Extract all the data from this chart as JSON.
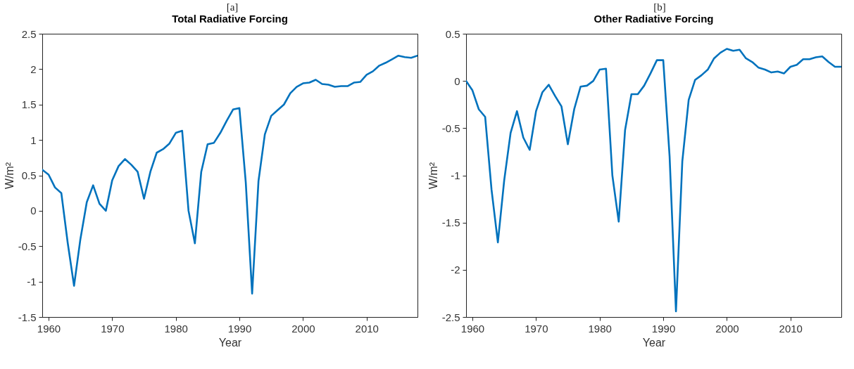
{
  "chart_data": [
    {
      "type": "line",
      "title": "Total Radiative Forcing",
      "xlabel": "Year",
      "ylabel": "W/m²",
      "annotations": [
        "[a]"
      ],
      "x": [
        1959,
        1960,
        1961,
        1962,
        1963,
        1964,
        1965,
        1966,
        1967,
        1968,
        1969,
        1970,
        1971,
        1972,
        1973,
        1974,
        1975,
        1976,
        1977,
        1978,
        1979,
        1980,
        1981,
        1982,
        1983,
        1984,
        1985,
        1986,
        1987,
        1988,
        1989,
        1990,
        1991,
        1992,
        1993,
        1994,
        1995,
        1996,
        1997,
        1998,
        1999,
        2000,
        2001,
        2002,
        2003,
        2004,
        2005,
        2006,
        2007,
        2008,
        2009,
        2010,
        2011,
        2012,
        2013,
        2014,
        2015,
        2016,
        2017,
        2018
      ],
      "series": [
        {
          "color": "#0072bd",
          "values": [
            0.58,
            0.51,
            0.33,
            0.25,
            -0.45,
            -1.06,
            -0.4,
            0.12,
            0.36,
            0.1,
            0.0,
            0.43,
            0.63,
            0.73,
            0.65,
            0.55,
            0.17,
            0.55,
            0.82,
            0.87,
            0.95,
            1.1,
            1.13,
            0.0,
            -0.46,
            0.55,
            0.94,
            0.96,
            1.1,
            1.27,
            1.43,
            1.45,
            0.4,
            -1.17,
            0.42,
            1.08,
            1.34,
            1.42,
            1.5,
            1.66,
            1.75,
            1.8,
            1.81,
            1.85,
            1.79,
            1.78,
            1.75,
            1.76,
            1.76,
            1.81,
            1.82,
            1.92,
            1.97,
            2.05,
            2.09,
            2.14,
            2.19,
            2.17,
            2.16,
            2.19
          ]
        }
      ],
      "xlim": [
        1959,
        2018
      ],
      "xticks": [
        1960,
        1970,
        1980,
        1990,
        2000,
        2010
      ],
      "ylim": [
        -1.5,
        2.5
      ],
      "yticks": [
        -1.5,
        -1,
        -0.5,
        0,
        0.5,
        1,
        1.5,
        2,
        2.5
      ],
      "grid": false,
      "line_style": "solid"
    },
    {
      "type": "line",
      "title": "Other Radiative Forcing",
      "xlabel": "Year",
      "ylabel": "W/m²",
      "annotations": [
        "[b]"
      ],
      "x": [
        1959,
        1960,
        1961,
        1962,
        1963,
        1964,
        1965,
        1966,
        1967,
        1968,
        1969,
        1970,
        1971,
        1972,
        1973,
        1974,
        1975,
        1976,
        1977,
        1978,
        1979,
        1980,
        1981,
        1982,
        1983,
        1984,
        1985,
        1986,
        1987,
        1988,
        1989,
        1990,
        1991,
        1992,
        1993,
        1994,
        1995,
        1996,
        1997,
        1998,
        1999,
        2000,
        2001,
        2002,
        2003,
        2004,
        2005,
        2006,
        2007,
        2008,
        2009,
        2010,
        2011,
        2012,
        2013,
        2014,
        2015,
        2016,
        2017,
        2018
      ],
      "series": [
        {
          "color": "#0072bd",
          "values": [
            0.0,
            -0.1,
            -0.3,
            -0.38,
            -1.15,
            -1.71,
            -1.05,
            -0.55,
            -0.32,
            -0.6,
            -0.73,
            -0.32,
            -0.12,
            -0.04,
            -0.16,
            -0.27,
            -0.67,
            -0.3,
            -0.06,
            -0.05,
            0.0,
            0.12,
            0.13,
            -1.0,
            -1.49,
            -0.52,
            -0.14,
            -0.14,
            -0.05,
            0.08,
            0.22,
            0.22,
            -0.8,
            -2.44,
            -0.85,
            -0.2,
            0.01,
            0.06,
            0.12,
            0.24,
            0.3,
            0.34,
            0.32,
            0.33,
            0.24,
            0.2,
            0.14,
            0.12,
            0.09,
            0.1,
            0.08,
            0.15,
            0.17,
            0.23,
            0.23,
            0.25,
            0.26,
            0.2,
            0.15,
            0.15
          ]
        }
      ],
      "xlim": [
        1959,
        2018
      ],
      "xticks": [
        1960,
        1970,
        1980,
        1990,
        2000,
        2010
      ],
      "ylim": [
        -2.5,
        0.5
      ],
      "yticks": [
        -2.5,
        -2,
        -1.5,
        -1,
        -0.5,
        0,
        0.5
      ],
      "grid": false,
      "line_style": "solid"
    }
  ]
}
